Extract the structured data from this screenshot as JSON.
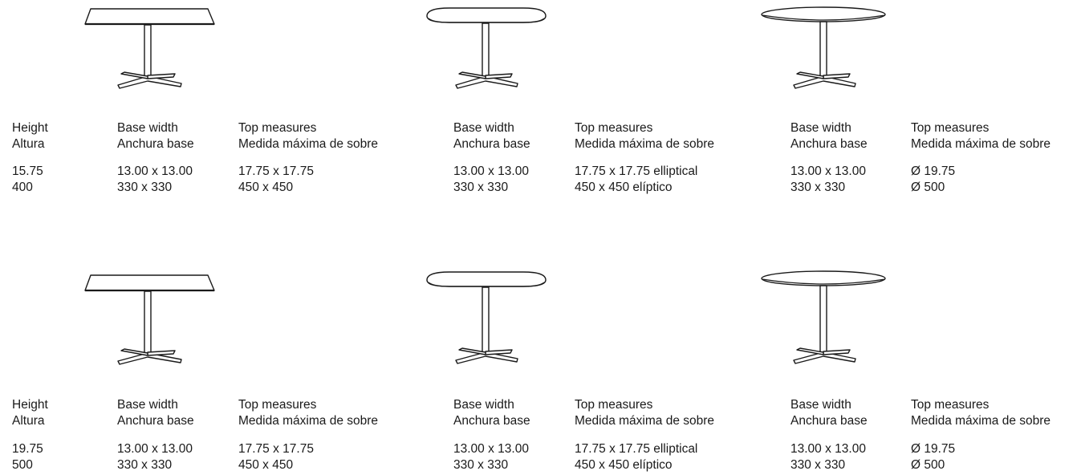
{
  "rows": [
    {
      "height": {
        "label_en": "Height",
        "label_es": "Altura",
        "value_in": "15.75",
        "value_mm": "400"
      },
      "tables": [
        {
          "shape_icon": "square-table-icon",
          "base_label_en": "Base width",
          "base_label_es": "Anchura base",
          "base_in": "13.00 x 13.00",
          "base_mm": "330 x 330",
          "top_label_en": "Top measures",
          "top_label_es": "Medida máxima de sobre",
          "top_in": "17.75 x 17.75",
          "top_mm": "450 x 450"
        },
        {
          "shape_icon": "elliptical-table-icon",
          "base_label_en": "Base width",
          "base_label_es": "Anchura base",
          "base_in": "13.00 x 13.00",
          "base_mm": "330 x 330",
          "top_label_en": "Top measures",
          "top_label_es": "Medida máxima de sobre",
          "top_in": "17.75 x 17.75 elliptical",
          "top_mm": "450 x 450 elíptico"
        },
        {
          "shape_icon": "round-table-icon",
          "base_label_en": "Base width",
          "base_label_es": "Anchura base",
          "base_in": "13.00 x 13.00",
          "base_mm": "330 x 330",
          "top_label_en": "Top measures",
          "top_label_es": "Medida máxima de sobre",
          "top_in": "Ø 19.75",
          "top_mm": "Ø 500"
        }
      ]
    },
    {
      "height": {
        "label_en": "Height",
        "label_es": "Altura",
        "value_in": "19.75",
        "value_mm": "500"
      },
      "tables": [
        {
          "shape_icon": "square-table-icon",
          "base_label_en": "Base width",
          "base_label_es": "Anchura base",
          "base_in": "13.00 x 13.00",
          "base_mm": "330 x 330",
          "top_label_en": "Top measures",
          "top_label_es": "Medida máxima de sobre",
          "top_in": "17.75 x 17.75",
          "top_mm": "450 x 450"
        },
        {
          "shape_icon": "elliptical-table-icon",
          "base_label_en": "Base width",
          "base_label_es": "Anchura base",
          "base_in": "13.00 x 13.00",
          "base_mm": "330 x 330",
          "top_label_en": "Top measures",
          "top_label_es": "Medida máxima de sobre",
          "top_in": "17.75 x 17.75 elliptical",
          "top_mm": "450 x 450 elíptico"
        },
        {
          "shape_icon": "round-table-icon",
          "base_label_en": "Base width",
          "base_label_es": "Anchura base",
          "base_in": "13.00 x 13.00",
          "base_mm": "330 x 330",
          "top_label_en": "Top measures",
          "top_label_es": "Medida máxima de sobre",
          "top_in": "Ø 19.75",
          "top_mm": "Ø 500"
        }
      ]
    }
  ]
}
